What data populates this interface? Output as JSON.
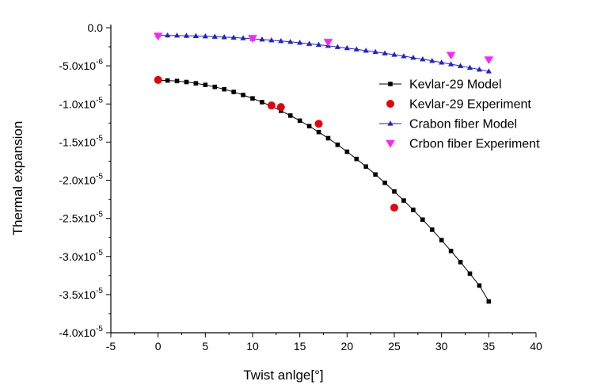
{
  "chart_data": {
    "type": "scatter",
    "xlabel": "Twist anlge[°]",
    "ylabel": "Thermal expansion",
    "xlim": [
      -5,
      40
    ],
    "ylim": [
      -4e-05,
      0.0
    ],
    "x_ticks": [
      -5,
      0,
      5,
      10,
      15,
      20,
      25,
      30,
      35,
      40
    ],
    "x_tick_labels": [
      "-5",
      "0",
      "5",
      "10",
      "15",
      "20",
      "25",
      "30",
      "35",
      "40"
    ],
    "y_ticks": [
      0.0,
      -5e-06,
      -1e-05,
      -1.5e-05,
      -2e-05,
      -2.5e-05,
      -3e-05,
      -3.5e-05,
      -4e-05
    ],
    "y_tick_labels": [
      {
        "mantissa": "0.0",
        "exponent": ""
      },
      {
        "mantissa": "-5.0x10",
        "exponent": "-6"
      },
      {
        "mantissa": "-1.0x10",
        "exponent": "-5"
      },
      {
        "mantissa": "-1.5x10",
        "exponent": "-5"
      },
      {
        "mantissa": "-2.0x10",
        "exponent": "-5"
      },
      {
        "mantissa": "-2.5x10",
        "exponent": "-5"
      },
      {
        "mantissa": "-3.0x10",
        "exponent": "-5"
      },
      {
        "mantissa": "-3.5x10",
        "exponent": "-5"
      },
      {
        "mantissa": "-4.0x10",
        "exponent": "-5"
      }
    ],
    "grid": false,
    "legend_position": "right",
    "series": [
      {
        "name": "Kevlar-29 Model",
        "kind": "line-marker",
        "marker": "square",
        "color": "#000000",
        "x": [
          0,
          1,
          2,
          3,
          4,
          5,
          6,
          7,
          8,
          9,
          10,
          11,
          12,
          13,
          14,
          15,
          16,
          17,
          18,
          19,
          20,
          21,
          22,
          23,
          24,
          25,
          26,
          27,
          28,
          29,
          30,
          31,
          32,
          33,
          34,
          35
        ],
        "y": [
          -6.9e-06,
          -6.92e-06,
          -6.99e-06,
          -7.12e-06,
          -7.29e-06,
          -7.5e-06,
          -7.76e-06,
          -8.07e-06,
          -8.42e-06,
          -8.82e-06,
          -9.27e-06,
          -9.76e-06,
          -1.03e-05,
          -1.089e-05,
          -1.152e-05,
          -1.219e-05,
          -1.291e-05,
          -1.368e-05,
          -1.449e-05,
          -1.535e-05,
          -1.626e-05,
          -1.721e-05,
          -1.821e-05,
          -1.925e-05,
          -2.034e-05,
          -2.148e-05,
          -2.266e-05,
          -2.389e-05,
          -2.517e-05,
          -2.649e-05,
          -2.786e-05,
          -2.928e-05,
          -3.074e-05,
          -3.225e-05,
          -3.381e-05,
          -3.59e-05
        ]
      },
      {
        "name": "Kevlar-29 Experiment",
        "kind": "marker",
        "marker": "circle",
        "color": "#e8000b",
        "x": [
          0,
          12,
          13,
          17,
          25
        ],
        "y": [
          -6.85e-06,
          -1.02e-05,
          -1.04e-05,
          -1.26e-05,
          -2.36e-05
        ]
      },
      {
        "name": "Crabon fiber Model",
        "kind": "line-marker",
        "marker": "triangle-up",
        "color": "#1f1fe0",
        "x": [
          0,
          1,
          2,
          3,
          4,
          5,
          6,
          7,
          8,
          9,
          10,
          11,
          12,
          13,
          14,
          15,
          16,
          17,
          18,
          19,
          20,
          21,
          22,
          23,
          24,
          25,
          26,
          27,
          28,
          29,
          30,
          31,
          32,
          33,
          34,
          35
        ],
        "y": [
          -1e-06,
          -1e-06,
          -1.02e-06,
          -1.05e-06,
          -1.08e-06,
          -1.12e-06,
          -1.17e-06,
          -1.23e-06,
          -1.29e-06,
          -1.37e-06,
          -1.45e-06,
          -1.54e-06,
          -1.64e-06,
          -1.74e-06,
          -1.85e-06,
          -1.97e-06,
          -2.1e-06,
          -2.23e-06,
          -2.37e-06,
          -2.52e-06,
          -2.67e-06,
          -2.83e-06,
          -3e-06,
          -3.17e-06,
          -3.35e-06,
          -3.54e-06,
          -3.73e-06,
          -3.93e-06,
          -4.13e-06,
          -4.34e-06,
          -4.56e-06,
          -4.78e-06,
          -5.01e-06,
          -5.24e-06,
          -5.48e-06,
          -5.72e-06
        ]
      },
      {
        "name": "Crbon fiber Experiment",
        "kind": "marker",
        "marker": "triangle-down",
        "color": "#ff22ff",
        "x": [
          0,
          10,
          18,
          31,
          35
        ],
        "y": [
          -1.1e-06,
          -1.4e-06,
          -1.9e-06,
          -3.6e-06,
          -4.2e-06
        ]
      }
    ]
  }
}
